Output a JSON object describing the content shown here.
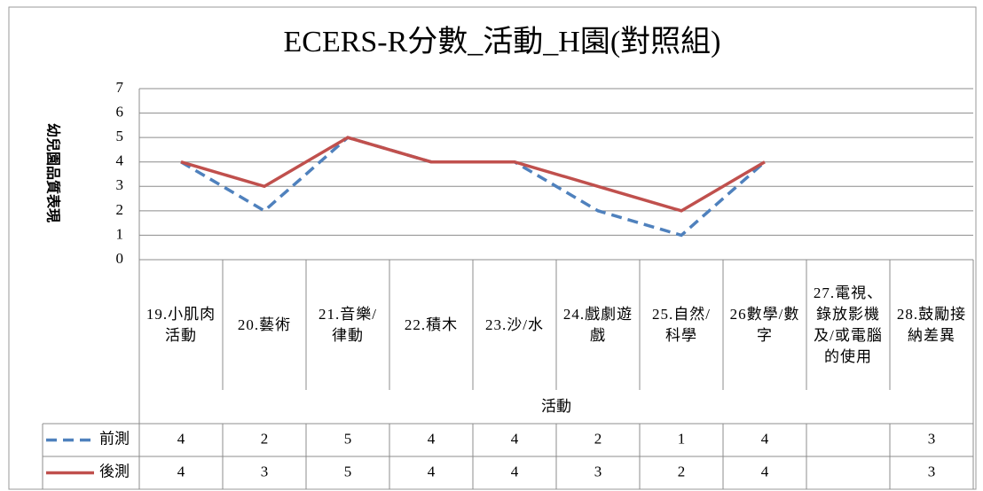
{
  "chart_data": {
    "type": "line",
    "title": "ECERS-R分數_活動_H園(對照組)",
    "y_label": "幼兒園品質表現",
    "x_label": "活動",
    "categories": [
      "19.小肌肉活動",
      "20.藝術",
      "21.音樂/律動",
      "22.積木",
      "23.沙/水",
      "24.戲劇遊戲",
      "25.自然/科學",
      "26數學/數字",
      "27.電視、錄放影機及/或電腦的使用",
      "28.鼓勵接納差異"
    ],
    "series": [
      {
        "name": "前測",
        "color": "#4f81bd",
        "dash": true,
        "values": [
          4,
          2,
          5,
          4,
          4,
          2,
          1,
          4,
          null,
          3
        ]
      },
      {
        "name": "後測",
        "color": "#c0504d",
        "dash": false,
        "values": [
          4,
          3,
          5,
          4,
          4,
          3,
          2,
          4,
          null,
          3
        ]
      }
    ],
    "ylim": [
      0,
      7
    ],
    "yticks": [
      0,
      1,
      2,
      3,
      4,
      5,
      6,
      7
    ],
    "grid": true,
    "data_table": true
  }
}
